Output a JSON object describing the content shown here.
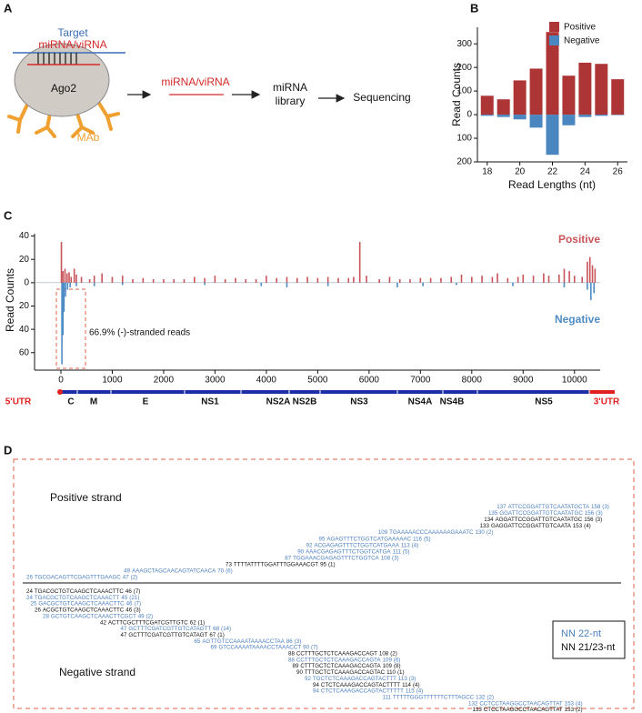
{
  "panel_labels": [
    "A",
    "B",
    "C",
    "D"
  ],
  "diagram": {
    "target": "Target",
    "target_rna": "miRNA/viRNA",
    "protein": "Ago2",
    "antibody": "MAb",
    "eluted_rna": "miRNA/viRNA",
    "library_line1": "miRNA",
    "library_line2": "library",
    "sequencing": "Sequencing"
  },
  "chart_data": [
    {
      "type": "bar",
      "ylabel": "Read Counts",
      "xlabel": "Read Lengths (nt)",
      "x": [
        18,
        19,
        20,
        21,
        22,
        23,
        24,
        25,
        26
      ],
      "xlim": [
        17.4,
        26.6
      ],
      "xticks": [
        18,
        20,
        22,
        24,
        26
      ],
      "ylim": [
        -200,
        370
      ],
      "yticks": [
        300,
        200,
        100,
        0,
        {
          "value": -100,
          "label": "100"
        },
        {
          "value": -200,
          "label": "200"
        }
      ],
      "legend": "upper right",
      "series": [
        {
          "name": "Positive",
          "color": "#ad3535",
          "values": [
            80,
            65,
            145,
            195,
            350,
            165,
            220,
            215,
            150
          ]
        },
        {
          "name": "Negative",
          "color": "#4a86c0",
          "values": [
            -5,
            -10,
            -20,
            -55,
            -170,
            -45,
            -10,
            -5,
            -2
          ]
        }
      ]
    },
    {
      "type": "bar",
      "ylabel": "Read Counts",
      "annotation": "66.9% (-)-stranded reads",
      "xlim": [
        -513,
        10500
      ],
      "xticks": [
        0,
        1000,
        2000,
        3000,
        4000,
        5000,
        6000,
        7000,
        8000,
        9000,
        10000
      ],
      "ylim": [
        -75,
        42
      ],
      "yticks": [
        40,
        20,
        0,
        {
          "value": -20,
          "label": "20"
        },
        {
          "value": -40,
          "label": "40"
        },
        {
          "value": -60,
          "label": "60"
        }
      ],
      "legend": "right",
      "series": [
        {
          "name": "Positive",
          "color": "#c9545a",
          "x": [
            10,
            40,
            80,
            120,
            160,
            200,
            260,
            300,
            400,
            560,
            650,
            800,
            1000,
            1200,
            1400,
            1600,
            1800,
            2000,
            2200,
            2400,
            2600,
            2800,
            3000,
            3200,
            3400,
            3600,
            3800,
            4000,
            4200,
            4400,
            4600,
            4800,
            5000,
            5200,
            5400,
            5600,
            5700,
            5820,
            5950,
            6200,
            6400,
            6600,
            6800,
            7000,
            7200,
            7400,
            7600,
            7800,
            8000,
            8200,
            8400,
            8500,
            8700,
            8900,
            9000,
            9200,
            9400,
            9500,
            9700,
            9800,
            9900,
            10000,
            10150,
            10250,
            10300,
            10350,
            10400
          ],
          "values": [
            35,
            10,
            12,
            8,
            9,
            5,
            12,
            7,
            5,
            3,
            6,
            8,
            5,
            6,
            3,
            4,
            3,
            3,
            3,
            3,
            5,
            4,
            6,
            3,
            4,
            3,
            3,
            6,
            4,
            5,
            4,
            5,
            4,
            5,
            4,
            4,
            5,
            35,
            6,
            3,
            5,
            3,
            3,
            4,
            4,
            4,
            5,
            7,
            5,
            6,
            5,
            8,
            4,
            5,
            7,
            6,
            8,
            6,
            7,
            12,
            10,
            6,
            5,
            18,
            22,
            15,
            12
          ]
        },
        {
          "name": "Negative",
          "color": "#4f8cc6",
          "x": [
            20,
            40,
            60,
            90,
            130,
            180,
            300,
            650,
            1200,
            2800,
            3900,
            4400,
            5200,
            6550,
            7050,
            7700,
            8800,
            9800,
            10250,
            10320,
            10380
          ],
          "values": [
            -70,
            -45,
            -25,
            -12,
            -6,
            -4,
            -3,
            -3,
            -2,
            -2,
            -3,
            -4,
            -3,
            -4,
            -3,
            -2,
            -3,
            -4,
            -6,
            -15,
            -9
          ]
        }
      ]
    }
  ],
  "genome_map": {
    "regions": [
      "5'UTR",
      "C",
      "M",
      "E",
      "NS1",
      "NS2A",
      "NS2B",
      "NS3",
      "NS4A",
      "NS4B",
      "NS5",
      "3'UTR"
    ]
  },
  "alignments": {
    "positive_title": "Positive strand",
    "negative_title": "Negative strand",
    "legend": [
      {
        "label": "NN 22-nt",
        "color": "#4a7fc1"
      },
      {
        "label": "NN 21/23-nt",
        "color": "#111111"
      }
    ],
    "positive": [
      {
        "start": 137,
        "sequence": "ATTCCGGATTGTCAATATGCTA",
        "end": 158,
        "count": "(3)",
        "color": "#4a7fc1"
      },
      {
        "start": 135,
        "sequence": "GGATTCCGGATTGTCAATATGC",
        "end": 156,
        "count": "(3)",
        "color": "#4a7fc1"
      },
      {
        "start": 134,
        "sequence": "AGGATTCCGGATTGTCAATATGC",
        "end": 156,
        "count": "(3)",
        "color": "#111111"
      },
      {
        "start": 133,
        "sequence": "GAGGATTCCGGATTGTCAATA",
        "end": 153,
        "count": "(4)",
        "color": "#111111"
      },
      {
        "start": 109,
        "sequence": "TGAAAAACCCAAAAAAGAAATC",
        "end": 130,
        "count": "(2)",
        "color": "#4a7fc1"
      },
      {
        "start": 95,
        "sequence": "AGAGTTTCTGGTCATGAAAAAC",
        "end": 116,
        "count": "(5)",
        "color": "#4a7fc1"
      },
      {
        "start": 92,
        "sequence": "ACGAGAGTTTCTGGTCATGAAA",
        "end": 113,
        "count": "(4)",
        "color": "#4a7fc1"
      },
      {
        "start": 90,
        "sequence": "AAACGAGAGTTTCTGGTCATGA",
        "end": 111,
        "count": "(5)",
        "color": "#4a7fc1"
      },
      {
        "start": 87,
        "sequence": "TGGAAACGAGAGTTTCTGGTCA",
        "end": 108,
        "count": "(3)",
        "color": "#4a7fc1"
      },
      {
        "start": 73,
        "sequence": "TTTTATTTTGGATTTGGAAACGT",
        "end": 95,
        "count": "(1)",
        "color": "#111111"
      },
      {
        "start": 49,
        "sequence": "AAAGCTAGCAACAGTATCAACA",
        "end": 70,
        "count": "(6)",
        "color": "#4a7fc1"
      },
      {
        "start": 26,
        "sequence": "TGCGACAGTTCGAGTTTGAAGC",
        "end": 47,
        "count": "(2)",
        "color": "#4a7fc1"
      }
    ],
    "negative": [
      {
        "start": 24,
        "sequence": "TGACGCTGTCAAGCTCAAACTTC",
        "end": 46,
        "count": "(7)",
        "color": "#111111"
      },
      {
        "start": 24,
        "sequence": "TGACGCTGTCAAGCTCAAACTT",
        "end": 45,
        "count": "(21)",
        "color": "#4a7fc1"
      },
      {
        "start": 25,
        "sequence": "GACGCTGTCAAGCTCAAACTTC",
        "end": 46,
        "count": "(7)",
        "color": "#4a7fc1"
      },
      {
        "start": 26,
        "sequence": "ACGCTGTCAAGCTCAAACTTC",
        "end": 46,
        "count": "(3)",
        "color": "#111111"
      },
      {
        "start": 28,
        "sequence": "GCTGTCAAGCTCAAACTTCGCT",
        "end": 49,
        "count": "(2)",
        "color": "#4a7fc1"
      },
      {
        "start": 42,
        "sequence": "ACTTCGCTTTCGATCGTTGTC",
        "end": 62,
        "count": "(1)",
        "color": "#111111"
      },
      {
        "start": 47,
        "sequence": "GCTTTCGATCGTTGTCATAGTT",
        "end": 68,
        "count": "(14)",
        "color": "#4a7fc1"
      },
      {
        "start": 47,
        "sequence": "GCTTTCGATCGTTGTCATAGT",
        "end": 67,
        "count": "(1)",
        "color": "#111111"
      },
      {
        "start": 65,
        "sequence": "AGTTGTCCAAAATAAAACCTAA",
        "end": 86,
        "count": "(3)",
        "color": "#4a7fc1"
      },
      {
        "start": 69,
        "sequence": "GTCCAAAATAAAACCTAAACCT",
        "end": 90,
        "count": "(7)",
        "color": "#4a7fc1"
      },
      {
        "start": 88,
        "sequence": "CCTTTGCTCTCAAAGACCAGT",
        "end": 108,
        "count": "(2)",
        "color": "#111111"
      },
      {
        "start": 88,
        "sequence": "CCTTTGCTCTCAAAGACCAGTA",
        "end": 109,
        "count": "(6)",
        "color": "#4a7fc1"
      },
      {
        "start": 89,
        "sequence": "CTTTGCTCTCAAAGACCAGTA",
        "end": 109,
        "count": "(8)",
        "color": "#111111"
      },
      {
        "start": 90,
        "sequence": "TTTGCTCTCAAAGACCAGTAC",
        "end": 110,
        "count": "(1)",
        "color": "#111111"
      },
      {
        "start": 92,
        "sequence": "TGCTCTCAAAGACCAGTACTTT",
        "end": 113,
        "count": "(3)",
        "color": "#4a7fc1"
      },
      {
        "start": 94,
        "sequence": "CTCTCAAAGACCAGTACTTTT",
        "end": 114,
        "count": "(4)",
        "color": "#111111"
      },
      {
        "start": 94,
        "sequence": "CTCTCAAAGACCAGTACTTTTT",
        "end": 115,
        "count": "(4)",
        "color": "#4a7fc1"
      },
      {
        "start": 111,
        "sequence": "TTTTTGGGTTTTTTCTTTAGCC",
        "end": 132,
        "count": "(2)",
        "color": "#4a7fc1"
      },
      {
        "start": 132,
        "sequence": "CCTCCTAAGGCCTAACAGTTAT",
        "end": 153,
        "count": "(4)",
        "color": "#4a7fc1"
      },
      {
        "start": 133,
        "sequence": "CTCCTAAGGCCTAACAGTTAT",
        "end": 153,
        "count": "(2)",
        "color": "#111111"
      }
    ]
  }
}
